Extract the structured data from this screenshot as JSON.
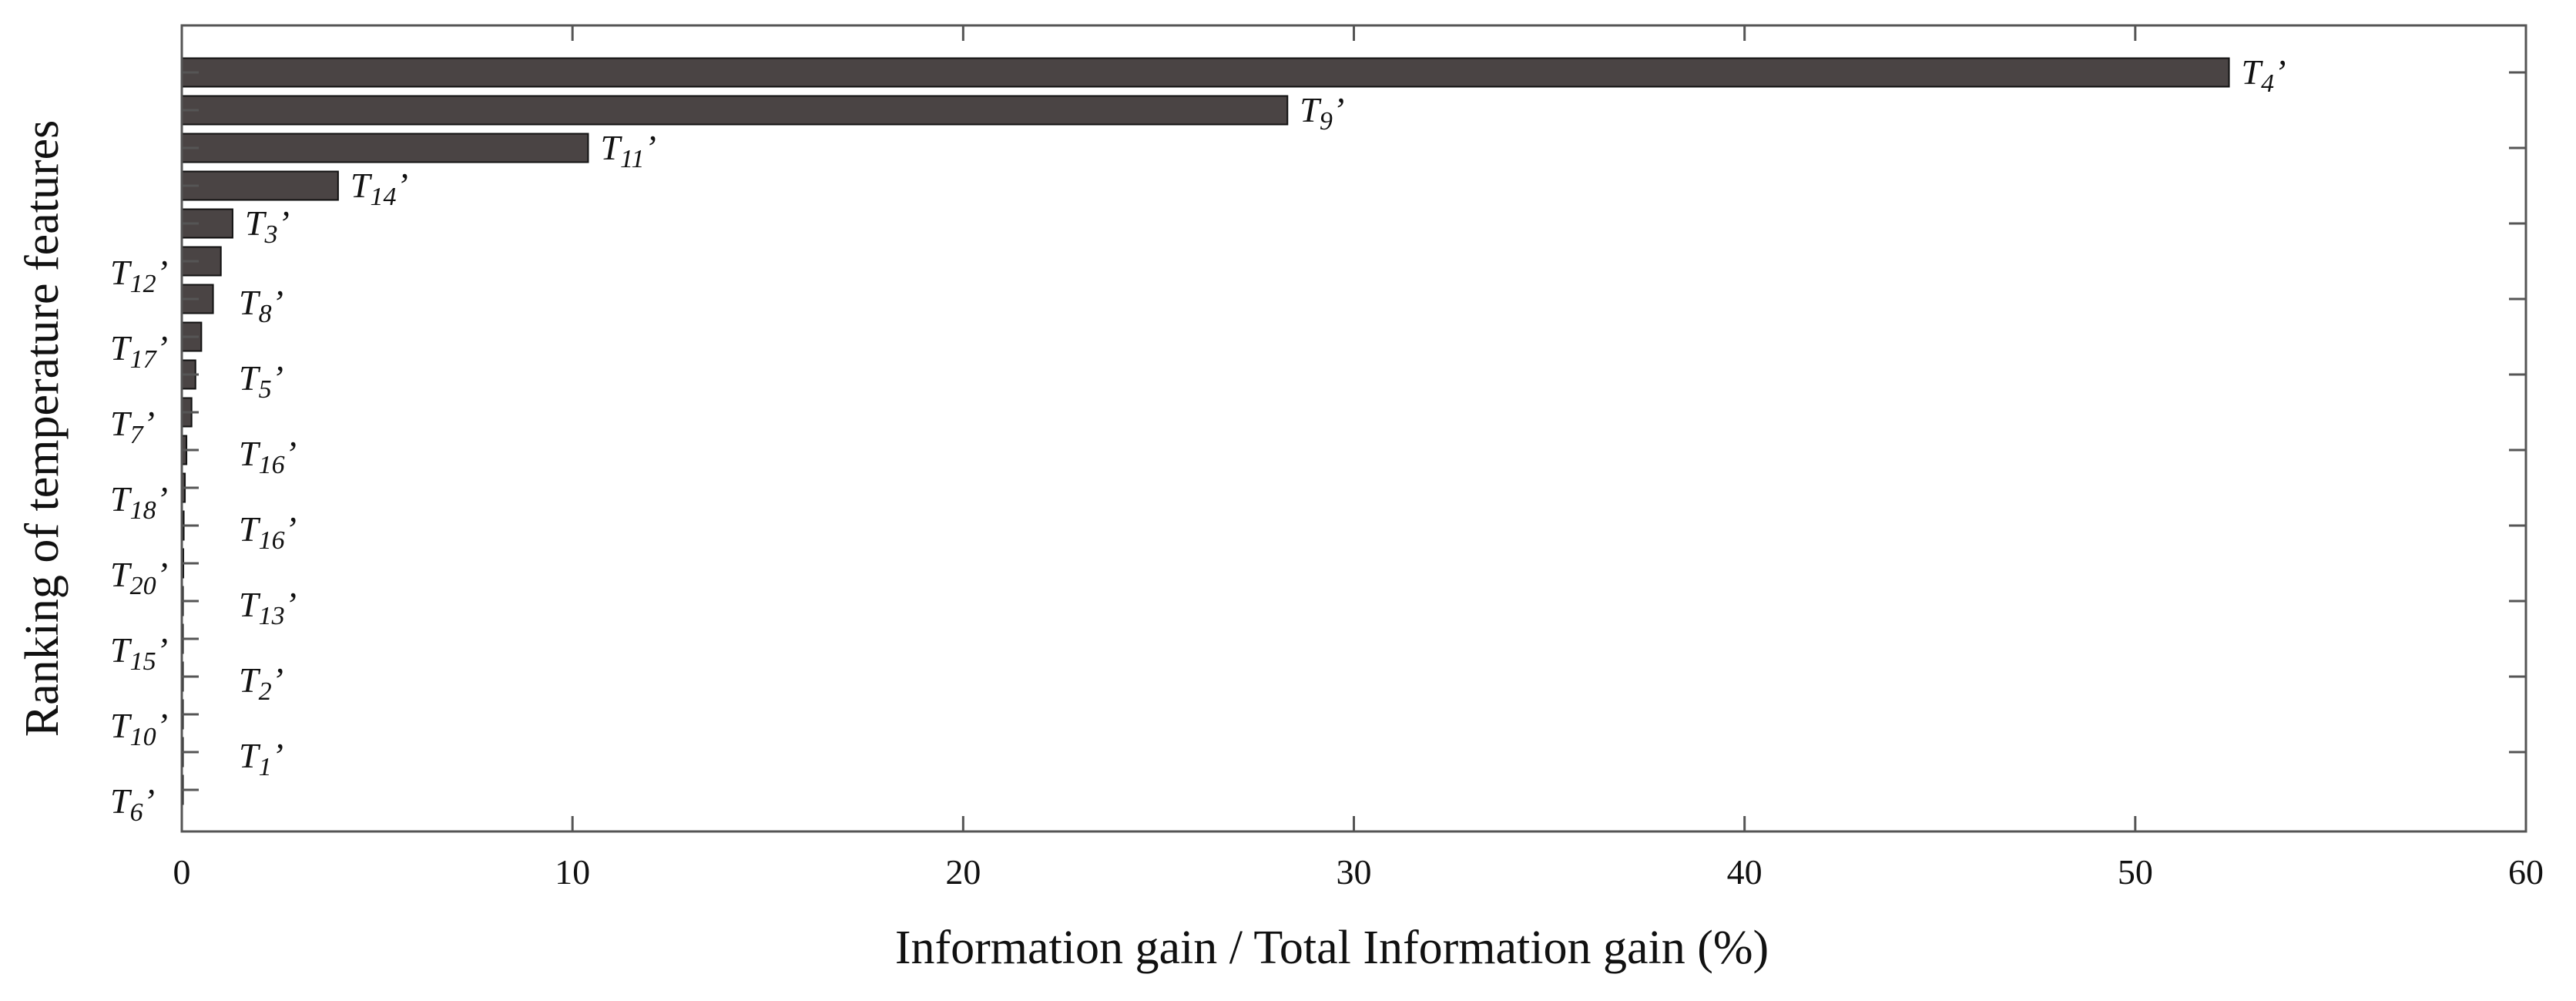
{
  "chart_data": {
    "type": "bar",
    "orientation": "horizontal",
    "xlabel": "Information gain / Total Information gain (%)",
    "ylabel": "Ranking of temperature features",
    "xlim": [
      0,
      60
    ],
    "xticks": [
      0,
      10,
      20,
      30,
      40,
      50,
      60
    ],
    "grid": false,
    "categories": [
      "T4'",
      "T9'",
      "T11'",
      "T14'",
      "T3'",
      "T12'",
      "T8'",
      "T17'",
      "T5'",
      "T7'",
      "T16'",
      "T18'",
      "T16'",
      "T20'",
      "T13'",
      "T15'",
      "T2'",
      "T10'",
      "T1'",
      "T6'"
    ],
    "label_parts": [
      {
        "base": "T",
        "sub": "4",
        "suffix": "’"
      },
      {
        "base": "T",
        "sub": "9",
        "suffix": "’"
      },
      {
        "base": "T",
        "sub": "11",
        "suffix": "’"
      },
      {
        "base": "T",
        "sub": "14",
        "suffix": "’"
      },
      {
        "base": "T",
        "sub": "3",
        "suffix": "’"
      },
      {
        "base": "T",
        "sub": "12",
        "suffix": "’"
      },
      {
        "base": "T",
        "sub": "8",
        "suffix": "’"
      },
      {
        "base": "T",
        "sub": "17",
        "suffix": "’"
      },
      {
        "base": "T",
        "sub": "5",
        "suffix": "’"
      },
      {
        "base": "T",
        "sub": "7",
        "suffix": "’"
      },
      {
        "base": "T",
        "sub": "16",
        "suffix": "’"
      },
      {
        "base": "T",
        "sub": "18",
        "suffix": "’"
      },
      {
        "base": "T",
        "sub": "16",
        "suffix": "’"
      },
      {
        "base": "T",
        "sub": "20",
        "suffix": "’"
      },
      {
        "base": "T",
        "sub": "13",
        "suffix": "’"
      },
      {
        "base": "T",
        "sub": "15",
        "suffix": "’"
      },
      {
        "base": "T",
        "sub": "2",
        "suffix": "’"
      },
      {
        "base": "T",
        "sub": "10",
        "suffix": "’"
      },
      {
        "base": "T",
        "sub": "1",
        "suffix": "’"
      },
      {
        "base": "T",
        "sub": "6",
        "suffix": "’"
      }
    ],
    "values": [
      52.4,
      28.3,
      10.4,
      4.0,
      1.3,
      1.0,
      0.8,
      0.5,
      0.35,
      0.25,
      0.12,
      0.08,
      0.05,
      0.04,
      0.03,
      0.02,
      0.015,
      0.01,
      0.005,
      0.003
    ],
    "colors": {
      "bar": "#4a4444",
      "bar_edge": "#111111",
      "axis": "#555555",
      "text": "#111111"
    }
  }
}
